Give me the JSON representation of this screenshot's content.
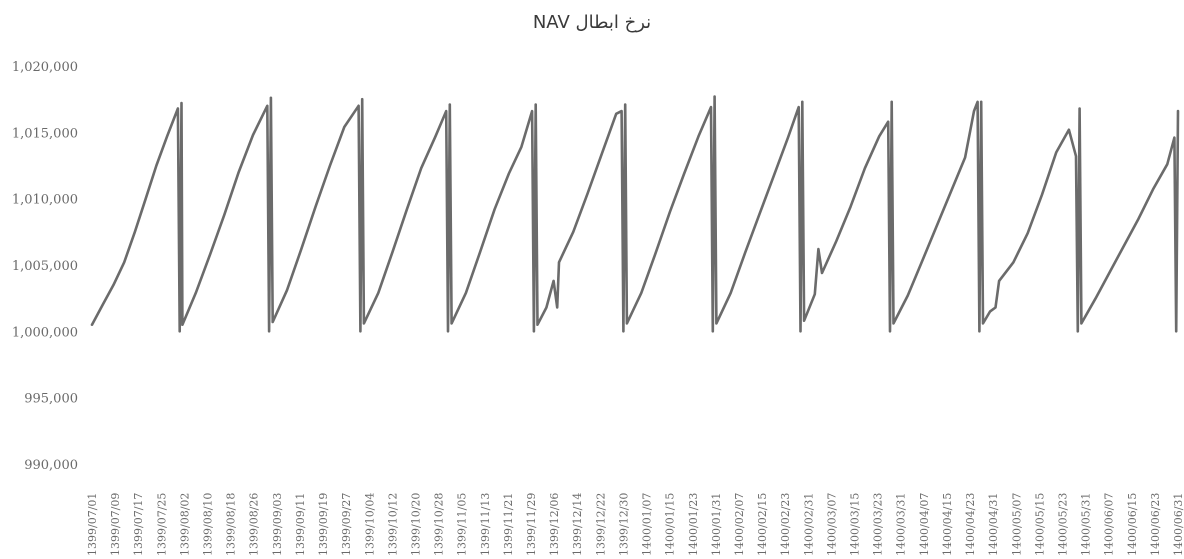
{
  "chart_data": {
    "type": "line",
    "title": "نرخ ابطال NAV",
    "xlabel": "",
    "ylabel": "",
    "ylim": [
      990000,
      1020000
    ],
    "grid": false,
    "legend": "none",
    "line_color": "#6b6b6b",
    "y_ticks": [
      "1,020,000",
      "1,015,000",
      "1,010,000",
      "1,005,000",
      "1,000,000",
      "995,000",
      "990,000"
    ],
    "x_ticks": [
      "1399/07/01",
      "1399/07/09",
      "1399/07/17",
      "1399/07/25",
      "1399/08/02",
      "1399/08/10",
      "1399/08/18",
      "1399/08/26",
      "1399/09/03",
      "1399/09/11",
      "1399/09/19",
      "1399/09/27",
      "1399/10/04",
      "1399/10/12",
      "1399/10/20",
      "1399/10/28",
      "1399/11/05",
      "1399/11/13",
      "1399/11/21",
      "1399/11/29",
      "1399/12/06",
      "1399/12/14",
      "1399/12/22",
      "1399/12/30",
      "1400/01/07",
      "1400/01/15",
      "1400/01/23",
      "1400/01/31",
      "1400/02/07",
      "1400/02/15",
      "1400/02/23",
      "1400/02/31",
      "1400/03/07",
      "1400/03/15",
      "1400/03/23",
      "1400/03/31",
      "1400/04/07",
      "1400/04/15",
      "1400/04/23",
      "1400/04/31",
      "1400/05/07",
      "1400/05/15",
      "1400/05/23",
      "1400/05/31",
      "1400/06/07",
      "1400/06/15",
      "1400/06/23",
      "1400/06/31"
    ],
    "series": [
      {
        "values": [
          [
            0,
            1000500
          ],
          [
            0.6,
            1002000
          ],
          [
            1.2,
            1003500
          ],
          [
            1.8,
            1005200
          ],
          [
            2.4,
            1007500
          ],
          [
            3.0,
            1010000
          ],
          [
            3.6,
            1012500
          ],
          [
            4.2,
            1014700
          ],
          [
            4.8,
            1016800
          ],
          [
            4.9,
            1000000
          ],
          [
            5.0,
            1017200
          ],
          [
            5.05,
            1000500
          ],
          [
            5.8,
            1002900
          ],
          [
            6.6,
            1005800
          ],
          [
            7.4,
            1008800
          ],
          [
            8.2,
            1012000
          ],
          [
            9.0,
            1014800
          ],
          [
            9.8,
            1017000
          ],
          [
            9.9,
            1000000
          ],
          [
            10.0,
            1017600
          ],
          [
            10.1,
            1000700
          ],
          [
            10.9,
            1003100
          ],
          [
            11.7,
            1006200
          ],
          [
            12.5,
            1009400
          ],
          [
            13.3,
            1012500
          ],
          [
            14.1,
            1015400
          ],
          [
            14.9,
            1017000
          ],
          [
            15.0,
            1000000
          ],
          [
            15.1,
            1017500
          ],
          [
            15.2,
            1000600
          ],
          [
            16.0,
            1002900
          ],
          [
            16.8,
            1006000
          ],
          [
            17.6,
            1009200
          ],
          [
            18.4,
            1012300
          ],
          [
            19.2,
            1014700
          ],
          [
            19.8,
            1016600
          ],
          [
            19.9,
            1000000
          ],
          [
            20.0,
            1017100
          ],
          [
            20.1,
            1000600
          ],
          [
            20.9,
            1002900
          ],
          [
            21.7,
            1006000
          ],
          [
            22.5,
            1009200
          ],
          [
            23.3,
            1011900
          ],
          [
            24.0,
            1013900
          ],
          [
            24.6,
            1016600
          ],
          [
            24.7,
            1000000
          ],
          [
            24.8,
            1017100
          ],
          [
            24.9,
            1000500
          ],
          [
            25.4,
            1001800
          ],
          [
            25.8,
            1003800
          ],
          [
            26.0,
            1001800
          ],
          [
            26.1,
            1005200
          ],
          [
            26.9,
            1007500
          ],
          [
            27.7,
            1010400
          ],
          [
            28.5,
            1013400
          ],
          [
            29.3,
            1016400
          ],
          [
            29.6,
            1016600
          ],
          [
            29.7,
            1000000
          ],
          [
            29.8,
            1017100
          ],
          [
            29.9,
            1000600
          ],
          [
            30.7,
            1002900
          ],
          [
            31.5,
            1005900
          ],
          [
            32.3,
            1009000
          ],
          [
            33.1,
            1011900
          ],
          [
            33.9,
            1014700
          ],
          [
            34.6,
            1016900
          ],
          [
            34.7,
            1000000
          ],
          [
            34.8,
            1017700
          ],
          [
            34.9,
            1000600
          ],
          [
            35.7,
            1002900
          ],
          [
            36.5,
            1005900
          ],
          [
            37.3,
            1008800
          ],
          [
            38.1,
            1011700
          ],
          [
            38.9,
            1014600
          ],
          [
            39.5,
            1016900
          ],
          [
            39.6,
            1000000
          ],
          [
            39.7,
            1017300
          ],
          [
            39.8,
            1000800
          ],
          [
            40.4,
            1002800
          ],
          [
            40.6,
            1006200
          ],
          [
            40.8,
            1004400
          ],
          [
            41.6,
            1006800
          ],
          [
            42.4,
            1009400
          ],
          [
            43.2,
            1012300
          ],
          [
            44.0,
            1014700
          ],
          [
            44.5,
            1015800
          ],
          [
            44.6,
            1000000
          ],
          [
            44.7,
            1017300
          ],
          [
            44.8,
            1000600
          ],
          [
            45.6,
            1002700
          ],
          [
            46.4,
            1005300
          ],
          [
            47.2,
            1007900
          ],
          [
            48.0,
            1010500
          ],
          [
            48.8,
            1013100
          ],
          [
            49.3,
            1016600
          ],
          [
            49.5,
            1017300
          ],
          [
            49.6,
            1000000
          ],
          [
            49.7,
            1017300
          ],
          [
            49.8,
            1000600
          ],
          [
            50.2,
            1001500
          ],
          [
            50.5,
            1001800
          ],
          [
            50.7,
            1003800
          ],
          [
            51.5,
            1005200
          ],
          [
            52.3,
            1007400
          ],
          [
            53.1,
            1010300
          ],
          [
            53.9,
            1013500
          ],
          [
            54.6,
            1015200
          ],
          [
            55.0,
            1013200
          ],
          [
            55.1,
            1000000
          ],
          [
            55.2,
            1016800
          ],
          [
            55.3,
            1000600
          ],
          [
            56.1,
            1002500
          ],
          [
            56.9,
            1004500
          ],
          [
            57.7,
            1006500
          ],
          [
            58.5,
            1008500
          ],
          [
            59.3,
            1010700
          ],
          [
            60.1,
            1012600
          ],
          [
            60.5,
            1014600
          ],
          [
            60.6,
            1000000
          ],
          [
            60.7,
            1016600
          ]
        ]
      }
    ]
  }
}
